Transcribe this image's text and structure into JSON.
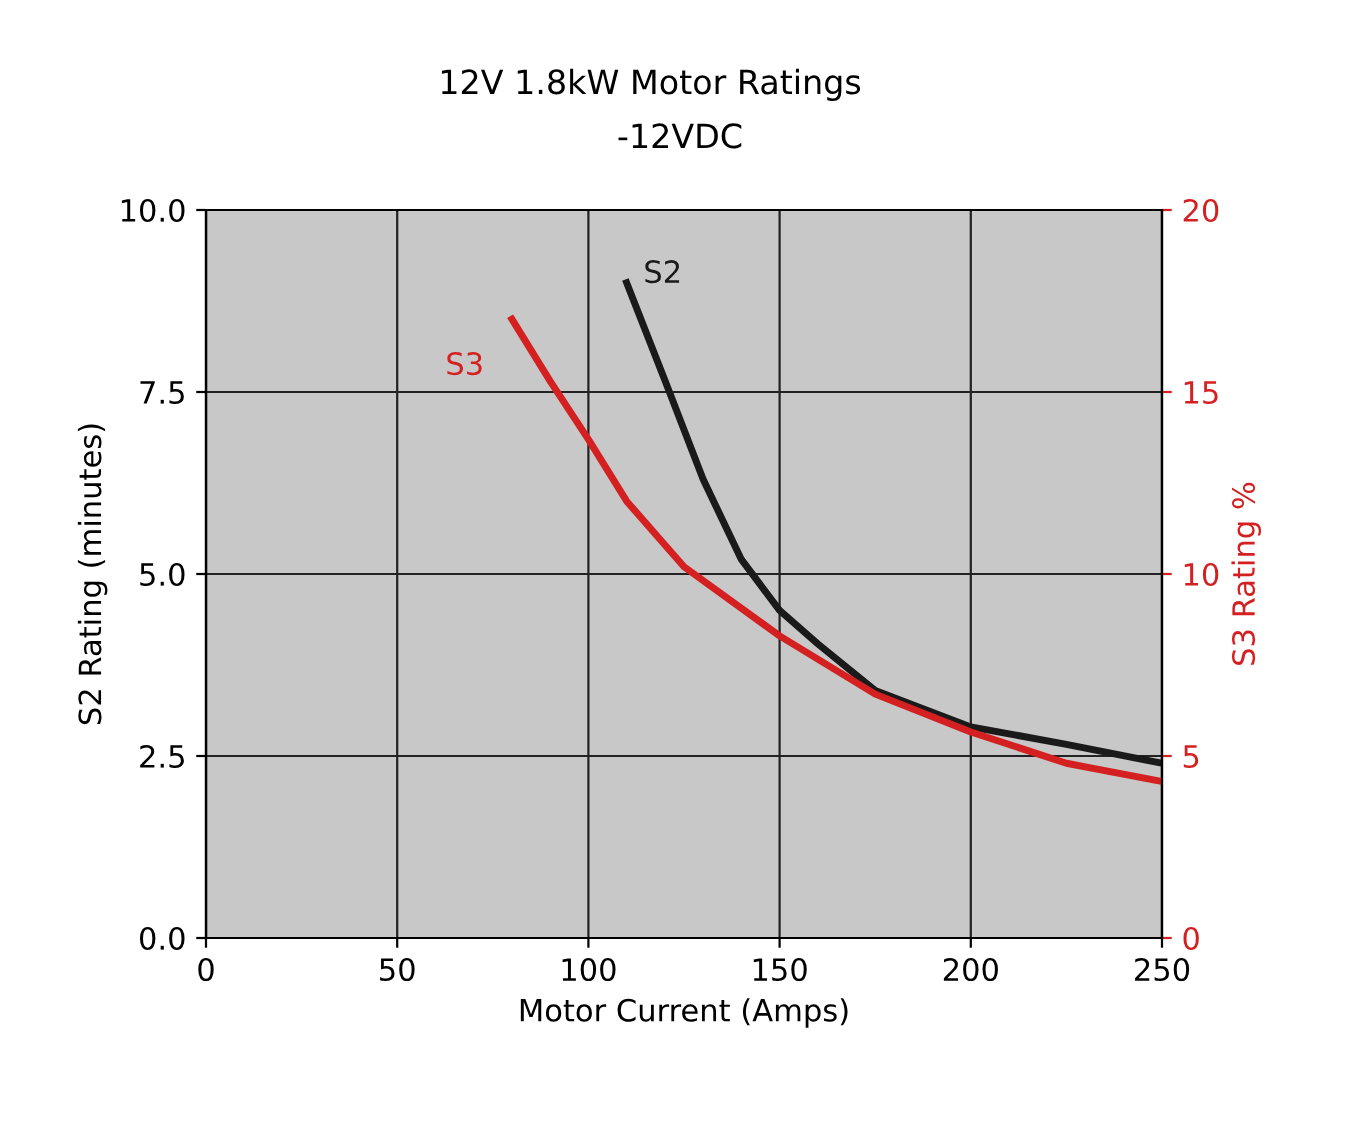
{
  "chart_data": {
    "type": "line",
    "title": "12V 1.8kW Motor Ratings",
    "subtitle": "-12VDC",
    "xlabel": "Motor Current (Amps)",
    "ylabel": "S2 Rating (minutes)",
    "y2label": "S3 Rating %",
    "xlim": [
      0,
      250
    ],
    "xticks": [
      0,
      50,
      100,
      150,
      200,
      250
    ],
    "ylim": [
      0,
      10
    ],
    "yticks": [
      {
        "value": 0,
        "label": "0.0"
      },
      {
        "value": 2.5,
        "label": "2.5"
      },
      {
        "value": 5,
        "label": "5.0"
      },
      {
        "value": 7.5,
        "label": "7.5"
      },
      {
        "value": 10,
        "label": "10.0"
      }
    ],
    "y2lim": [
      0,
      20
    ],
    "y2ticks": [
      0,
      5,
      10,
      15,
      20
    ],
    "grid": true,
    "marker": "none",
    "line_style": "solid",
    "series": [
      {
        "name": "S2",
        "color": "#1a1a1a",
        "x": [
          110,
          120,
          130,
          140,
          150,
          160,
          175,
          200,
          225,
          250
        ],
        "values": [
          9.0,
          7.66,
          6.3,
          5.2,
          4.5,
          4.04,
          3.4,
          2.9,
          2.66,
          2.4
        ]
      },
      {
        "name": "S3",
        "color": "#d42020",
        "axis": "y2",
        "x": [
          80,
          90,
          100,
          110,
          125,
          150,
          175,
          200,
          225,
          250
        ],
        "values": [
          17.0,
          15.3,
          13.7,
          12.0,
          10.2,
          8.3,
          6.7,
          5.66,
          4.8,
          4.3
        ]
      }
    ]
  }
}
